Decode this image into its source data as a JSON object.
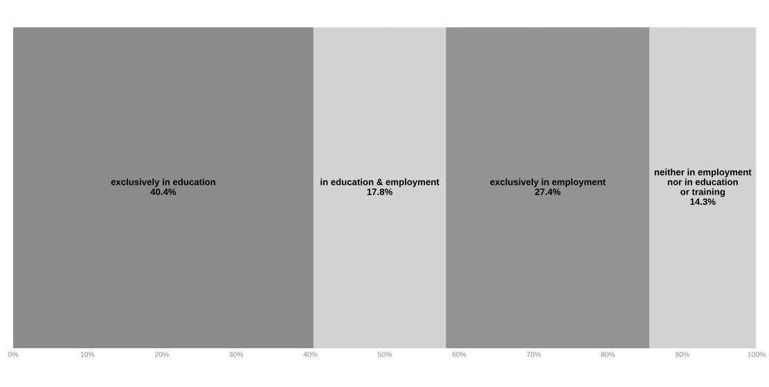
{
  "chart_data": {
    "type": "bar",
    "orientation": "horizontal",
    "stacked": true,
    "categories": [
      null
    ],
    "series": [
      {
        "name": "exclusively in education",
        "color": "#8c8c8c",
        "values": [
          40.4
        ],
        "value_labels": [
          "40.4%"
        ]
      },
      {
        "name": "in education & employment",
        "color": "#d3d3d3",
        "values": [
          17.8
        ],
        "value_labels": [
          "17.8%"
        ]
      },
      {
        "name": "exclusively in employment",
        "color": "#939393",
        "values": [
          27.4
        ],
        "value_labels": [
          "27.4%"
        ]
      },
      {
        "name": "neither in employment\nnor in education\nor training",
        "color": "#d3d3d3",
        "values": [
          14.3
        ],
        "value_labels": [
          "14.3%"
        ]
      }
    ],
    "xlim": [
      0,
      100
    ],
    "xticks": [
      {
        "value": 0,
        "label": "0%"
      },
      {
        "value": 10,
        "label": "10%"
      },
      {
        "value": 20,
        "label": "20%"
      },
      {
        "value": 30,
        "label": "30%"
      },
      {
        "value": 40,
        "label": "40%"
      },
      {
        "value": 50,
        "label": "50%"
      },
      {
        "value": 60,
        "label": "60%"
      },
      {
        "value": 70,
        "label": "70%"
      },
      {
        "value": 80,
        "label": "80%"
      },
      {
        "value": 90,
        "label": "90%"
      },
      {
        "value": 100,
        "label": "100%"
      }
    ],
    "grid": "x",
    "tick_labels": "x",
    "legend": false
  }
}
